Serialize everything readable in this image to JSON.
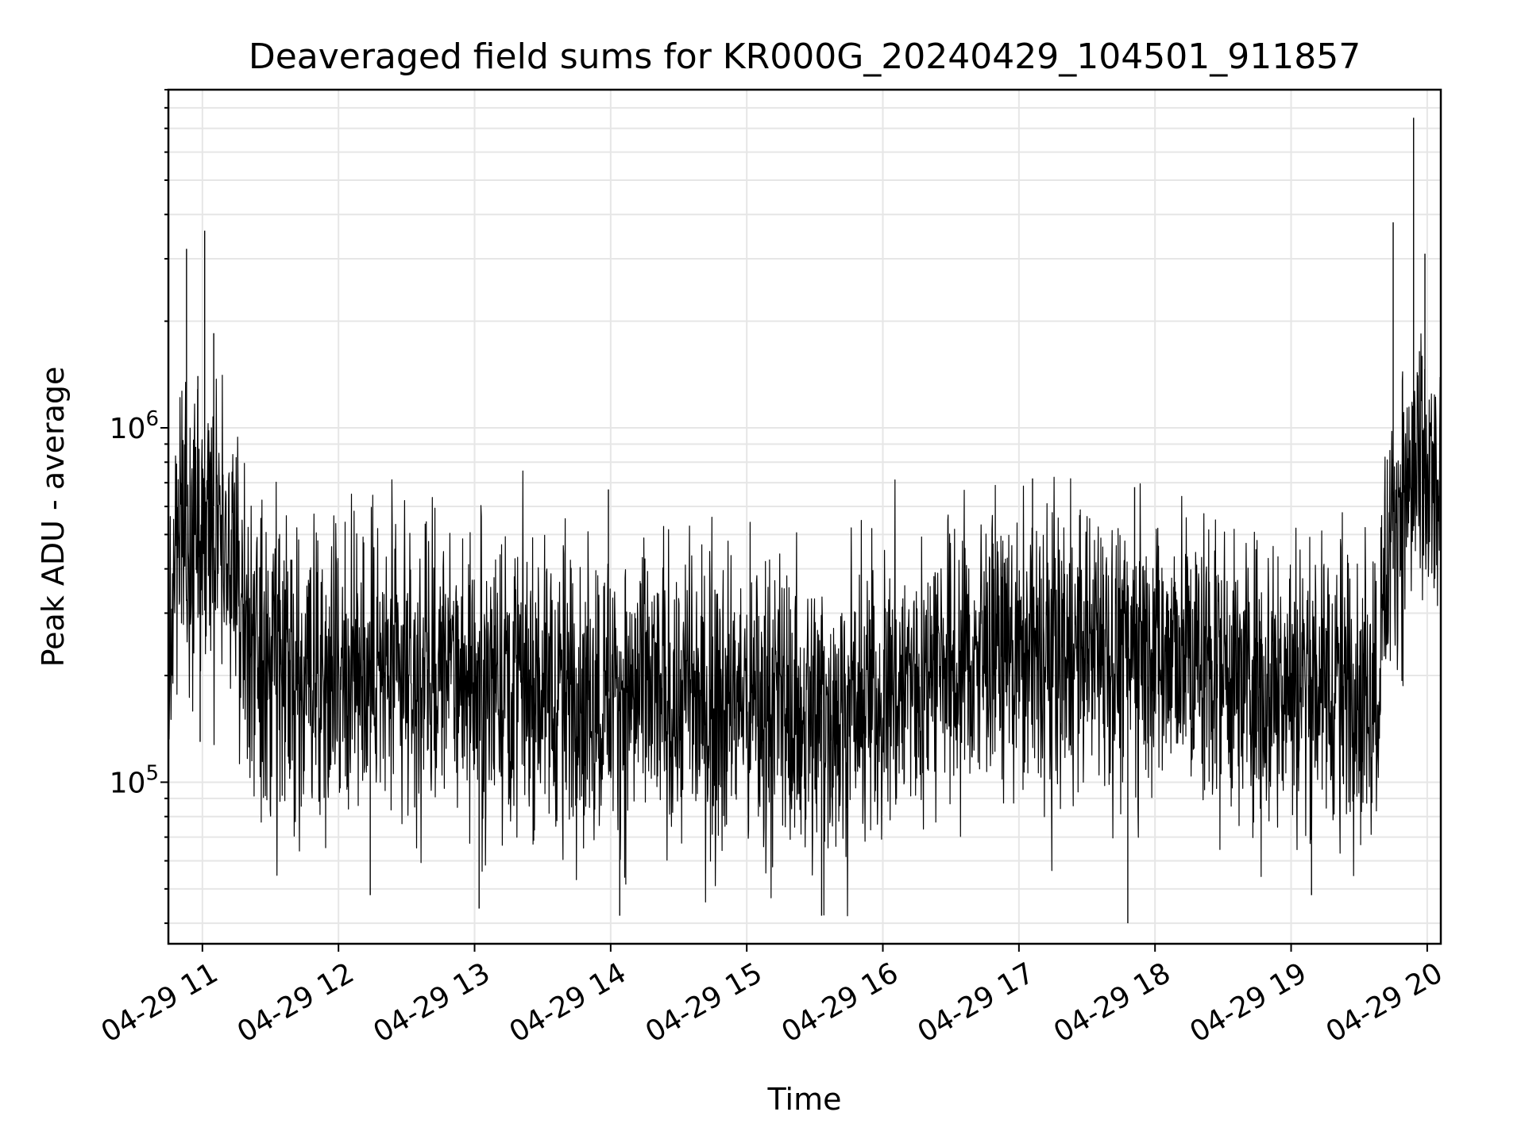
{
  "chart_data": {
    "type": "line",
    "title": "Deaveraged field sums for KR000G_20240429_104501_911857",
    "xlabel": "Time",
    "ylabel": "Peak ADU - average",
    "xlim": [
      "2024-04-29 10:45",
      "2024-04-29 20:06"
    ],
    "ylim": [
      35000,
      9000000
    ],
    "yscale": "log",
    "grid": true,
    "grid_color": "#e6e6e6",
    "line_color": "#000000",
    "x_ticks": [
      {
        "value": "2024-04-29 11:00",
        "label": "04-29 11"
      },
      {
        "value": "2024-04-29 12:00",
        "label": "04-29 12"
      },
      {
        "value": "2024-04-29 13:00",
        "label": "04-29 13"
      },
      {
        "value": "2024-04-29 14:00",
        "label": "04-29 14"
      },
      {
        "value": "2024-04-29 15:00",
        "label": "04-29 15"
      },
      {
        "value": "2024-04-29 16:00",
        "label": "04-29 16"
      },
      {
        "value": "2024-04-29 17:00",
        "label": "04-29 17"
      },
      {
        "value": "2024-04-29 18:00",
        "label": "04-29 18"
      },
      {
        "value": "2024-04-29 19:00",
        "label": "04-29 19"
      },
      {
        "value": "2024-04-29 20:00",
        "label": "04-29 20"
      }
    ],
    "y_ticks": [
      {
        "value": 100000,
        "base": "10",
        "exp": "5"
      },
      {
        "value": 1000000,
        "base": "10",
        "exp": "6"
      }
    ],
    "series": [
      {
        "x": [
          "2024-04-29 10:45",
          "2024-04-29 10:48",
          "2024-04-29 10:51",
          "2024-04-29 10:54",
          "2024-04-29 10:57",
          "2024-04-29 11:00",
          "2024-04-29 11:03",
          "2024-04-29 11:06",
          "2024-04-29 11:09",
          "2024-04-29 11:12",
          "2024-04-29 11:15",
          "2024-04-29 11:18",
          "2024-04-29 11:21",
          "2024-04-29 11:24",
          "2024-04-29 11:27",
          "2024-04-29 11:30",
          "2024-04-29 11:40",
          "2024-04-29 11:50",
          "2024-04-29 12:00",
          "2024-04-29 12:10",
          "2024-04-29 12:20",
          "2024-04-29 12:30",
          "2024-04-29 12:40",
          "2024-04-29 12:50",
          "2024-04-29 13:00",
          "2024-04-29 13:10",
          "2024-04-29 13:20",
          "2024-04-29 13:30",
          "2024-04-29 13:40",
          "2024-04-29 13:50",
          "2024-04-29 14:00",
          "2024-04-29 14:10",
          "2024-04-29 14:20",
          "2024-04-29 14:30",
          "2024-04-29 14:40",
          "2024-04-29 14:50",
          "2024-04-29 15:00",
          "2024-04-29 15:10",
          "2024-04-29 15:20",
          "2024-04-29 15:30",
          "2024-04-29 15:40",
          "2024-04-29 15:50",
          "2024-04-29 16:00",
          "2024-04-29 16:10",
          "2024-04-29 16:20",
          "2024-04-29 16:30",
          "2024-04-29 16:40",
          "2024-04-29 16:50",
          "2024-04-29 17:00",
          "2024-04-29 17:10",
          "2024-04-29 17:20",
          "2024-04-29 17:30",
          "2024-04-29 17:40",
          "2024-04-29 17:50",
          "2024-04-29 18:00",
          "2024-04-29 18:10",
          "2024-04-29 18:20",
          "2024-04-29 18:30",
          "2024-04-29 18:40",
          "2024-04-29 18:50",
          "2024-04-29 19:00",
          "2024-04-29 19:10",
          "2024-04-29 19:20",
          "2024-04-29 19:30",
          "2024-04-29 19:35",
          "2024-04-29 19:38",
          "2024-04-29 19:42",
          "2024-04-29 19:46",
          "2024-04-29 19:50",
          "2024-04-29 19:54",
          "2024-04-29 19:58",
          "2024-04-29 20:02",
          "2024-04-29 20:06"
        ],
        "y": [
          250000,
          500000,
          600000,
          550000,
          480000,
          520000,
          600000,
          560000,
          500000,
          450000,
          380000,
          300000,
          220000,
          200000,
          190000,
          185000,
          190000,
          200000,
          205000,
          200000,
          200000,
          195000,
          195000,
          200000,
          205000,
          205000,
          200000,
          190000,
          185000,
          180000,
          180000,
          175000,
          175000,
          175000,
          170000,
          170000,
          170000,
          165000,
          160000,
          160000,
          160000,
          165000,
          180000,
          195000,
          205000,
          215000,
          220000,
          225000,
          230000,
          230000,
          235000,
          240000,
          240000,
          240000,
          235000,
          230000,
          220000,
          210000,
          200000,
          195000,
          195000,
          195000,
          195000,
          185000,
          185000,
          200000,
          400000,
          600000,
          650000,
          700000,
          650000,
          650000,
          600000
        ]
      }
    ],
    "spikes": [
      {
        "x": "2024-04-29 10:53",
        "y": 3200000
      },
      {
        "x": "2024-04-29 11:01",
        "y": 3600000
      },
      {
        "x": "2024-04-29 11:05",
        "y": 1850000
      },
      {
        "x": "2024-04-29 10:58",
        "y": 1400000
      },
      {
        "x": "2024-04-29 13:59",
        "y": 670000
      },
      {
        "x": "2024-04-29 17:06",
        "y": 720000
      },
      {
        "x": "2024-04-29 17:51",
        "y": 680000
      },
      {
        "x": "2024-04-29 19:45",
        "y": 3800000
      },
      {
        "x": "2024-04-29 19:54",
        "y": 7500000
      },
      {
        "x": "2024-04-29 19:59",
        "y": 3100000
      },
      {
        "x": "2024-04-29 10:59",
        "y": 130000
      },
      {
        "x": "2024-04-29 12:14",
        "y": 48000
      },
      {
        "x": "2024-04-29 13:02",
        "y": 44000
      },
      {
        "x": "2024-04-29 14:04",
        "y": 42000
      },
      {
        "x": "2024-04-29 15:33",
        "y": 42000
      },
      {
        "x": "2024-04-29 17:48",
        "y": 40000
      },
      {
        "x": "2024-04-29 19:09",
        "y": 48000
      }
    ]
  }
}
